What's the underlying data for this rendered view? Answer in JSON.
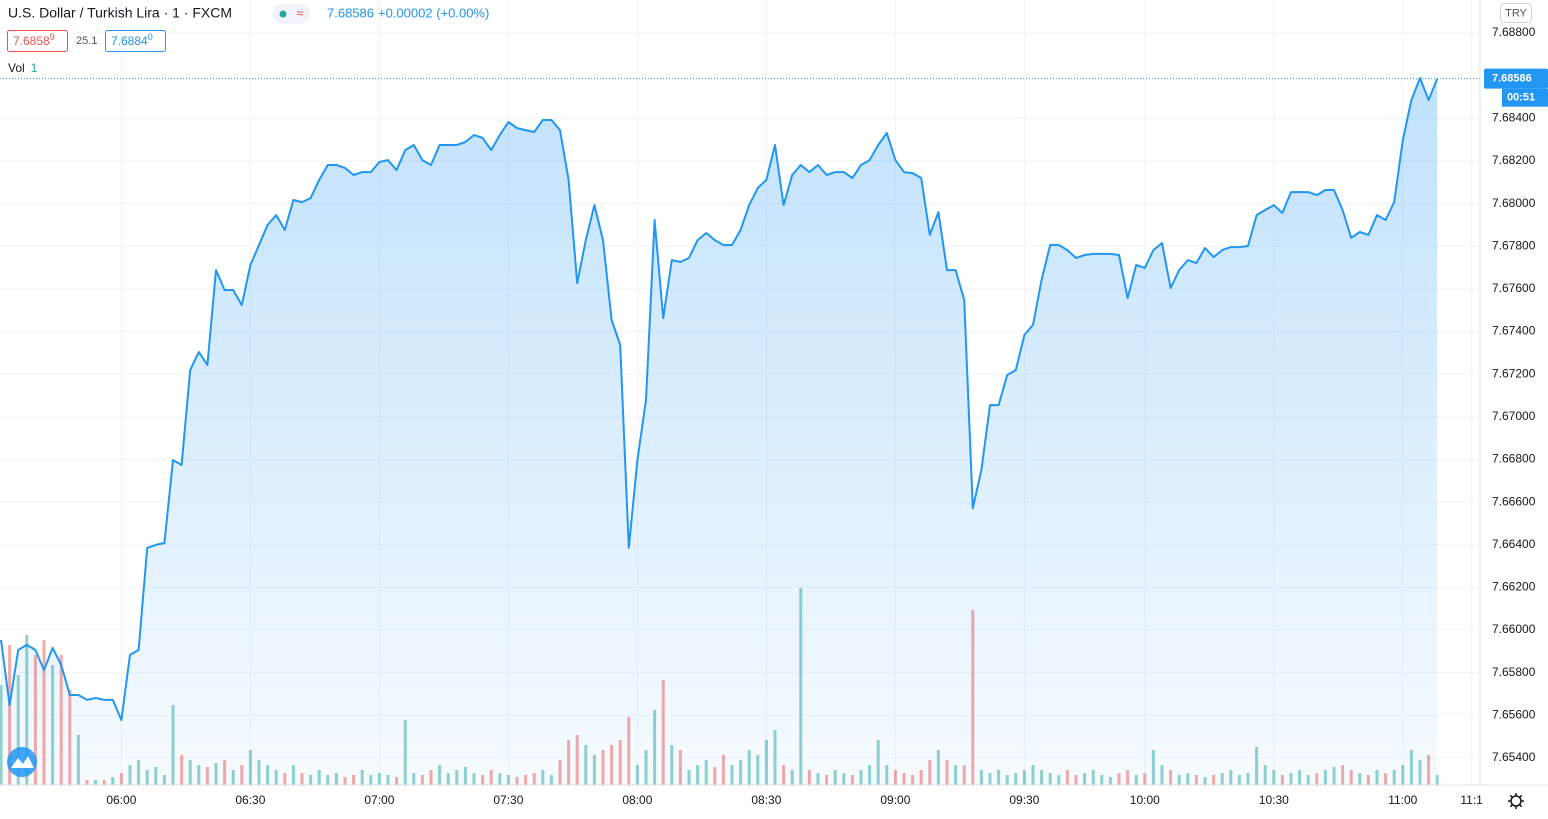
{
  "chart_data": {
    "type": "area",
    "title": "U.S. Dollar / Turkish Lira · 1 · FXCM",
    "last_price": 7.68586,
    "change": "+0.00002 (+0.00%)",
    "bid": {
      "main": "7.6858",
      "pip": "9"
    },
    "spread": "25.1",
    "ask": {
      "main": "7.6884",
      "pip": "0"
    },
    "currency": "TRY",
    "countdown": "00:51",
    "categories": [
      null,
      null,
      null,
      null,
      null,
      null,
      null,
      null,
      null,
      null,
      null,
      null,
      null,
      null,
      "06:00",
      null,
      null,
      null,
      null,
      null,
      null,
      null,
      null,
      null,
      null,
      null,
      null,
      null,
      null,
      "06:30",
      null,
      null,
      null,
      null,
      null,
      null,
      null,
      null,
      null,
      null,
      null,
      null,
      null,
      null,
      "07:00",
      null,
      null,
      null,
      null,
      null,
      null,
      null,
      null,
      null,
      null,
      null,
      null,
      null,
      null,
      "07:30",
      null,
      null,
      null,
      null,
      null,
      null,
      null,
      null,
      null,
      null,
      null,
      null,
      null,
      null,
      "08:00",
      null,
      null,
      null,
      null,
      null,
      null,
      null,
      null,
      null,
      null,
      null,
      null,
      null,
      null,
      "08:30",
      null,
      null,
      null,
      null,
      null,
      null,
      null,
      null,
      null,
      null,
      null,
      null,
      null,
      null,
      "09:00",
      null,
      null,
      null,
      null,
      null,
      null,
      null,
      null,
      null,
      null,
      null,
      null,
      null,
      null,
      "09:30",
      null,
      null,
      null,
      null,
      null,
      null,
      null,
      null,
      null,
      null,
      null,
      null,
      null,
      "10:00",
      null,
      null,
      null,
      null,
      null,
      null,
      null,
      null,
      null,
      null,
      null,
      null,
      null,
      null,
      "10:30",
      null,
      null,
      null,
      null,
      null,
      null,
      null,
      null,
      null,
      null,
      null,
      null,
      null,
      null,
      "11:00",
      null,
      null,
      null,
      null,
      null,
      null,
      null,
      "11:1"
    ],
    "series": [
      {
        "color": "#2196f3",
        "values": [
          7.65953,
          7.65648,
          7.65906,
          7.6593,
          7.65906,
          7.65812,
          7.65916,
          7.65836,
          7.65695,
          7.65695,
          7.65672,
          7.65681,
          7.65672,
          7.65672,
          7.65578,
          7.65883,
          7.65906,
          7.66385,
          7.66399,
          7.66408,
          7.66797,
          7.66774,
          7.67219,
          7.67304,
          7.67243,
          7.67688,
          7.67595,
          7.67595,
          7.67524,
          7.67712,
          7.67806,
          7.679,
          7.67946,
          7.67876,
          7.68017,
          7.68007,
          7.68026,
          7.68111,
          7.68181,
          7.68181,
          7.68167,
          7.68134,
          7.68148,
          7.68148,
          7.68195,
          7.68204,
          7.68157,
          7.68251,
          7.68275,
          7.68204,
          7.68181,
          7.68275,
          7.68275,
          7.68275,
          7.68289,
          7.68322,
          7.68308,
          7.68251,
          7.68322,
          7.68383,
          7.68354,
          7.68345,
          7.68336,
          7.68392,
          7.68392,
          7.68345,
          7.68111,
          7.67627,
          7.67829,
          7.67993,
          7.67829,
          7.67454,
          7.67337,
          7.66385,
          7.66797,
          7.67079,
          7.67923,
          7.67463,
          7.67735,
          7.67726,
          7.67745,
          7.67829,
          7.67862,
          7.67829,
          7.67806,
          7.67806,
          7.67876,
          7.67993,
          7.68073,
          7.68111,
          7.68275,
          7.67993,
          7.68134,
          7.68181,
          7.68148,
          7.68181,
          7.68134,
          7.68148,
          7.68148,
          7.6812,
          7.68181,
          7.68204,
          7.68275,
          7.68331,
          7.68204,
          7.68148,
          7.68143,
          7.6812,
          7.67853,
          7.6796,
          7.67688,
          7.67688,
          7.67548,
          7.66572,
          7.6675,
          7.67055,
          7.67055,
          7.67196,
          7.67219,
          7.67384,
          7.67431,
          7.67642,
          7.67806,
          7.67806,
          7.67782,
          7.67745,
          7.67759,
          7.67764,
          7.67764,
          7.67764,
          7.67759,
          7.67557,
          7.67712,
          7.67698,
          7.67782,
          7.67815,
          7.67604,
          7.67688,
          7.67735,
          7.67721,
          7.67792,
          7.67749,
          7.67782,
          7.67796,
          7.67796,
          7.67801,
          7.67946,
          7.6797,
          7.67993,
          7.67956,
          7.68054,
          7.68054,
          7.68054,
          7.6804,
          7.68064,
          7.68064,
          7.6797,
          7.67839,
          7.67867,
          7.67853,
          7.67946,
          7.67923,
          7.68007,
          7.68298,
          7.68486,
          7.68589,
          7.68486,
          7.68586,
          null,
          null,
          null,
          null
        ]
      },
      {
        "name": "Vol",
        "length": 1,
        "axis": "y2",
        "up_color": "#26a69a",
        "down_color": "#ef5350",
        "values": [
          100,
          140,
          110,
          150,
          130,
          145,
          120,
          130,
          95,
          50,
          5,
          5,
          5,
          8,
          12,
          20,
          25,
          15,
          18,
          10,
          80,
          30,
          25,
          20,
          18,
          22,
          25,
          15,
          20,
          35,
          25,
          20,
          15,
          12,
          20,
          12,
          10,
          15,
          10,
          12,
          8,
          10,
          15,
          10,
          12,
          10,
          8,
          65,
          12,
          10,
          15,
          20,
          12,
          15,
          18,
          12,
          10,
          15,
          12,
          10,
          8,
          10,
          12,
          15,
          10,
          25,
          45,
          50,
          40,
          30,
          35,
          40,
          45,
          68,
          20,
          35,
          75,
          105,
          40,
          35,
          15,
          20,
          25,
          18,
          30,
          20,
          25,
          35,
          30,
          45,
          55,
          20,
          15,
          197,
          15,
          12,
          10,
          15,
          12,
          10,
          15,
          20,
          45,
          20,
          15,
          12,
          10,
          15,
          25,
          35,
          25,
          20,
          20,
          175,
          15,
          12,
          15,
          10,
          12,
          15,
          20,
          15,
          12,
          10,
          15,
          10,
          12,
          15,
          10,
          8,
          12,
          15,
          10,
          12,
          35,
          20,
          15,
          10,
          12,
          10,
          8,
          10,
          12,
          15,
          10,
          12,
          38,
          20,
          15,
          10,
          12,
          15,
          10,
          12,
          15,
          18,
          20,
          15,
          12,
          10,
          15,
          12,
          15,
          20,
          35,
          25,
          30,
          10,
          null,
          null,
          null,
          null
        ]
      }
    ],
    "ylim": [
      7.65273,
      7.68955
    ],
    "yticks": [
      {
        "value": 7.688,
        "label": "7.68800"
      },
      {
        "value": 7.684,
        "label": "7.68400"
      },
      {
        "value": 7.682,
        "label": "7.68200"
      },
      {
        "value": 7.68,
        "label": "7.68000"
      },
      {
        "value": 7.678,
        "label": "7.67800"
      },
      {
        "value": 7.676,
        "label": "7.67600"
      },
      {
        "value": 7.674,
        "label": "7.67400"
      },
      {
        "value": 7.672,
        "label": "7.67200"
      },
      {
        "value": 7.67,
        "label": "7.67000"
      },
      {
        "value": 7.668,
        "label": "7.66800"
      },
      {
        "value": 7.666,
        "label": "7.66600"
      },
      {
        "value": 7.664,
        "label": "7.66400"
      },
      {
        "value": 7.662,
        "label": "7.66200"
      },
      {
        "value": 7.66,
        "label": "7.66000"
      },
      {
        "value": 7.658,
        "label": "7.65800"
      },
      {
        "value": 7.656,
        "label": "7.65600"
      },
      {
        "value": 7.654,
        "label": "7.65400"
      }
    ],
    "y2lim": [
      0,
      250
    ],
    "grid": true
  }
}
